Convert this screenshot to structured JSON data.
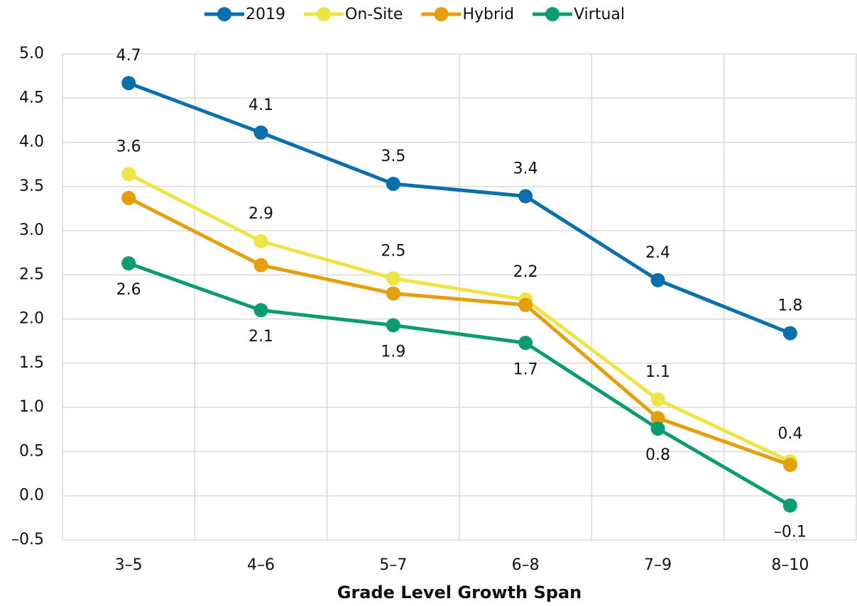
{
  "chart_data": {
    "type": "line",
    "x_label": "Grade Level Growth Span",
    "categories": [
      "3–5",
      "4–6",
      "5–7",
      "6–8",
      "7–9",
      "8–10"
    ],
    "series": [
      {
        "name": "2019",
        "color": "#0a6fad",
        "values": [
          4.67,
          4.11,
          3.53,
          3.39,
          2.44,
          1.84
        ],
        "value_labels": [
          "4.7",
          "4.1",
          "3.5",
          "3.4",
          "2.4",
          "1.8"
        ]
      },
      {
        "name": "On-Site",
        "color": "#efe446",
        "values": [
          3.64,
          2.88,
          2.46,
          2.22,
          1.09,
          0.39
        ],
        "value_labels": [
          "3.6",
          "2.9",
          "2.5",
          "2.2",
          "1.1",
          "0.4"
        ]
      },
      {
        "name": "Hybrid",
        "color": "#e69f0c",
        "values": [
          3.37,
          2.61,
          2.29,
          2.16,
          0.88,
          0.35
        ]
      },
      {
        "name": "Virtual",
        "color": "#0c9c72",
        "values": [
          2.63,
          2.1,
          1.93,
          1.73,
          0.76,
          -0.11
        ],
        "value_labels": [
          "2.6",
          "2.1",
          "1.9",
          "1.7",
          "0.8",
          "–0.1"
        ]
      }
    ],
    "ylim": [
      -0.5,
      5.0
    ],
    "yticks": [
      {
        "value": -0.5,
        "label": "–0.5"
      },
      {
        "value": 0,
        "label": "0.0"
      },
      {
        "value": 0.5,
        "label": "0.5"
      },
      {
        "value": 1,
        "label": "1.0"
      },
      {
        "value": 1.5,
        "label": "1.5"
      },
      {
        "value": 2,
        "label": "2.0"
      },
      {
        "value": 2.5,
        "label": "2.5"
      },
      {
        "value": 3,
        "label": "3.0"
      },
      {
        "value": 3.5,
        "label": "3.5"
      },
      {
        "value": 4,
        "label": "4.0"
      },
      {
        "value": 4.5,
        "label": "4.5"
      },
      {
        "value": 5,
        "label": "5.0"
      }
    ],
    "grid": true,
    "legend": "top"
  }
}
